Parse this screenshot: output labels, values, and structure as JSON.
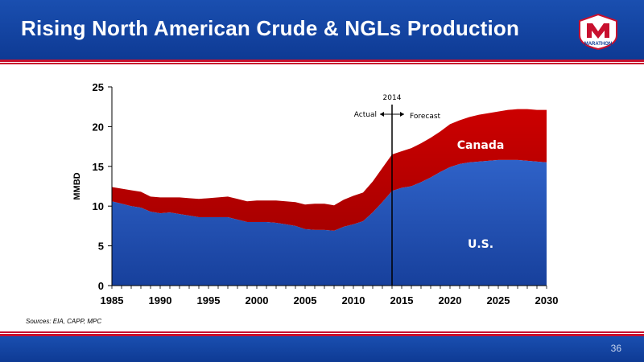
{
  "slide": {
    "title": "Rising North American Crude & NGLs Production",
    "sources": "Sources:  EIA, CAPP, MPC",
    "page_number": "36",
    "logo_text": "MARATHON"
  },
  "colors": {
    "header_blue": "#1448a8",
    "accent_red": "#c8102e",
    "us_blue": "#1f4fb4",
    "canada_red": "#c00000"
  },
  "chart_data": {
    "type": "area",
    "stacked": true,
    "ylabel": "MMBD",
    "xlim": [
      1985,
      2030
    ],
    "ylim": [
      0,
      25
    ],
    "xticks": [
      1985,
      1990,
      1995,
      2000,
      2005,
      2010,
      2015,
      2020,
      2025,
      2030
    ],
    "yticks": [
      0,
      5,
      10,
      15,
      20,
      25
    ],
    "x": [
      1985,
      1986,
      1987,
      1988,
      1989,
      1990,
      1991,
      1992,
      1993,
      1994,
      1995,
      1996,
      1997,
      1998,
      1999,
      2000,
      2001,
      2002,
      2003,
      2004,
      2005,
      2006,
      2007,
      2008,
      2009,
      2010,
      2011,
      2012,
      2013,
      2014,
      2015,
      2016,
      2017,
      2018,
      2019,
      2020,
      2021,
      2022,
      2023,
      2024,
      2025,
      2026,
      2027,
      2028,
      2029,
      2030
    ],
    "series": [
      {
        "name": "U.S.",
        "color": "#1f4fb4",
        "values": [
          10.6,
          10.3,
          10.0,
          9.8,
          9.3,
          9.1,
          9.2,
          9.0,
          8.8,
          8.6,
          8.6,
          8.6,
          8.6,
          8.3,
          8.0,
          8.0,
          8.0,
          7.9,
          7.7,
          7.5,
          7.1,
          7.0,
          7.0,
          6.9,
          7.4,
          7.7,
          8.1,
          9.2,
          10.5,
          11.9,
          12.3,
          12.5,
          13.0,
          13.6,
          14.3,
          14.9,
          15.3,
          15.5,
          15.6,
          15.7,
          15.8,
          15.8,
          15.8,
          15.7,
          15.6,
          15.5
        ]
      },
      {
        "name": "Canada",
        "color": "#c00000",
        "values": [
          1.8,
          1.9,
          2.0,
          2.0,
          1.9,
          2.0,
          1.9,
          2.1,
          2.2,
          2.3,
          2.4,
          2.5,
          2.6,
          2.6,
          2.6,
          2.7,
          2.7,
          2.8,
          2.9,
          3.0,
          3.1,
          3.3,
          3.3,
          3.2,
          3.4,
          3.6,
          3.6,
          3.9,
          4.3,
          4.6,
          4.6,
          4.8,
          4.9,
          5.0,
          5.1,
          5.4,
          5.5,
          5.7,
          5.9,
          6.0,
          6.1,
          6.3,
          6.4,
          6.5,
          6.5,
          6.6
        ]
      }
    ],
    "annotations": {
      "divider_year": 2014,
      "divider_label": "2014",
      "actual_label": "Actual",
      "forecast_label": "Forecast"
    }
  }
}
